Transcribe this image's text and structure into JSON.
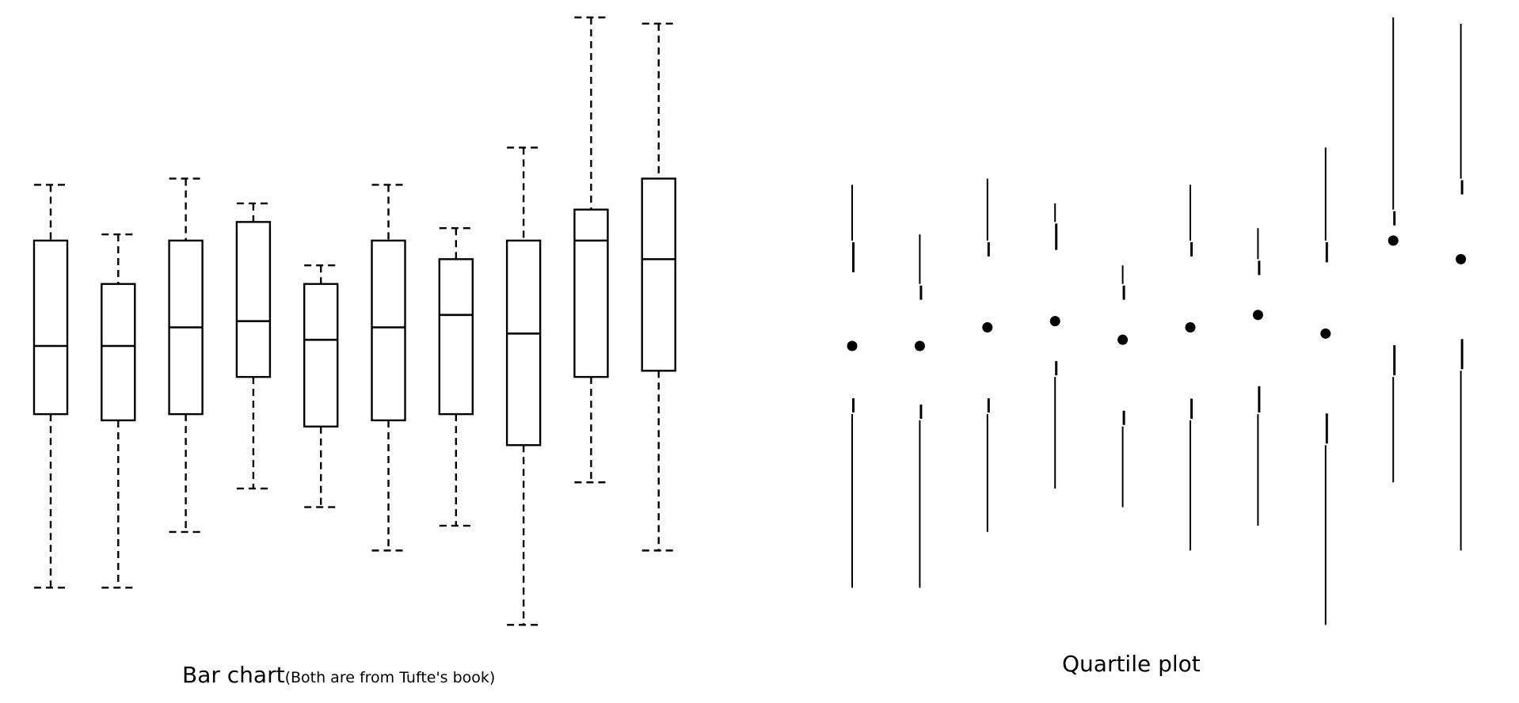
{
  "captions": {
    "left_main": "Bar chart",
    "left_note": "(Both are from Tufte's book)",
    "right": "Quartile plot"
  },
  "colors": {
    "ink": "#000000",
    "background": "#ffffff"
  },
  "chart_data": [
    {
      "type": "boxplot",
      "title": "",
      "caption": "Bar chart",
      "xlabel": "",
      "ylabel": "",
      "axes": "none",
      "grid": false,
      "whisker_style": "dashed",
      "ylim": [
        0,
        100
      ],
      "boxes": [
        {
          "min": 8,
          "q1": 36,
          "median": 47,
          "q3": 64,
          "max": 73
        },
        {
          "min": 8,
          "q1": 35,
          "median": 47,
          "q3": 57,
          "max": 65
        },
        {
          "min": 17,
          "q1": 36,
          "median": 50,
          "q3": 64,
          "max": 74
        },
        {
          "min": 24,
          "q1": 42,
          "median": 51,
          "q3": 67,
          "max": 70
        },
        {
          "min": 21,
          "q1": 34,
          "median": 48,
          "q3": 57,
          "max": 60
        },
        {
          "min": 14,
          "q1": 35,
          "median": 50,
          "q3": 64,
          "max": 73
        },
        {
          "min": 18,
          "q1": 36,
          "median": 52,
          "q3": 61,
          "max": 66
        },
        {
          "min": 2,
          "q1": 31,
          "median": 49,
          "q3": 64,
          "max": 79
        },
        {
          "min": 25,
          "q1": 42,
          "median": 64,
          "q3": 69,
          "max": 100
        },
        {
          "min": 14,
          "q1": 43,
          "median": 61,
          "q3": 74,
          "max": 99
        }
      ]
    },
    {
      "type": "quartile_plot",
      "title": "",
      "caption": "Quartile plot",
      "xlabel": "",
      "ylabel": "",
      "axes": "none",
      "grid": false,
      "ylim": [
        0,
        100
      ],
      "items": [
        {
          "min": 8,
          "q1": 36,
          "median": 47,
          "q3": 64,
          "max": 73
        },
        {
          "min": 8,
          "q1": 35,
          "median": 47,
          "q3": 57,
          "max": 65
        },
        {
          "min": 17,
          "q1": 36,
          "median": 50,
          "q3": 64,
          "max": 74
        },
        {
          "min": 24,
          "q1": 42,
          "median": 51,
          "q3": 67,
          "max": 70
        },
        {
          "min": 21,
          "q1": 34,
          "median": 48,
          "q3": 57,
          "max": 60
        },
        {
          "min": 14,
          "q1": 35,
          "median": 50,
          "q3": 64,
          "max": 73
        },
        {
          "min": 18,
          "q1": 36,
          "median": 52,
          "q3": 61,
          "max": 66
        },
        {
          "min": 2,
          "q1": 31,
          "median": 49,
          "q3": 64,
          "max": 79
        },
        {
          "min": 25,
          "q1": 42,
          "median": 64,
          "q3": 69,
          "max": 100
        },
        {
          "min": 14,
          "q1": 43,
          "median": 61,
          "q3": 74,
          "max": 99
        }
      ]
    }
  ]
}
